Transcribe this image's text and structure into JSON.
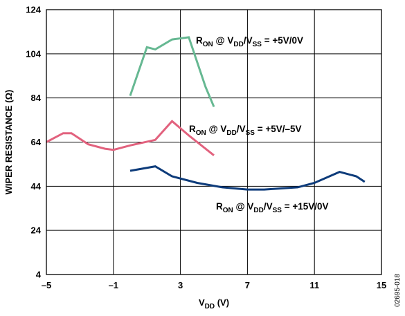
{
  "chart_data": {
    "type": "line",
    "xlabel": {
      "main": "V",
      "sub": "DD",
      "tail": " (V)"
    },
    "ylabel": "WIPER RESISTANCE (Ω)",
    "xlim": [
      -5,
      15
    ],
    "ylim": [
      4,
      124
    ],
    "x_ticks": [
      -5,
      -1,
      3,
      7,
      11,
      15
    ],
    "x_tick_labels": [
      "–5",
      "–1",
      "3",
      "7",
      "11",
      "15"
    ],
    "y_ticks": [
      4,
      24,
      44,
      64,
      84,
      104,
      124
    ],
    "y_tick_labels": [
      "4",
      "24",
      "44",
      "64",
      "84",
      "104",
      "124"
    ],
    "grid": true,
    "figure_id": "02695-018",
    "series": [
      {
        "color": "#66b892",
        "label": [
          {
            "t": "R"
          },
          {
            "t": "ON",
            "sub": true
          },
          {
            "t": " @ V"
          },
          {
            "t": "DD",
            "sub": true
          },
          {
            "t": "/V"
          },
          {
            "t": "SS",
            "sub": true
          },
          {
            "t": " = +5V/0V"
          }
        ],
        "points": [
          [
            0,
            85
          ],
          [
            1,
            107
          ],
          [
            1.5,
            106
          ],
          [
            2.5,
            110.5
          ],
          [
            3,
            111
          ],
          [
            3.5,
            111.5
          ],
          [
            4.5,
            89
          ],
          [
            5,
            80
          ]
        ]
      },
      {
        "color": "#e2627e",
        "label": [
          {
            "t": "R"
          },
          {
            "t": "ON",
            "sub": true
          },
          {
            "t": " @ V"
          },
          {
            "t": "DD",
            "sub": true
          },
          {
            "t": "/V"
          },
          {
            "t": "SS",
            "sub": true
          },
          {
            "t": " = +5V/–5V"
          }
        ],
        "points": [
          [
            -5,
            64
          ],
          [
            -4.5,
            66
          ],
          [
            -4,
            68
          ],
          [
            -3.5,
            68
          ],
          [
            -2.5,
            63
          ],
          [
            -1.5,
            61
          ],
          [
            -1,
            60.5
          ],
          [
            0,
            62.5
          ],
          [
            1.5,
            65
          ],
          [
            2.5,
            73.5
          ],
          [
            3.5,
            67
          ],
          [
            4.5,
            61
          ],
          [
            5,
            58
          ]
        ]
      },
      {
        "color": "#0d3b7a",
        "label": [
          {
            "t": "R"
          },
          {
            "t": "ON",
            "sub": true
          },
          {
            "t": " @ V"
          },
          {
            "t": "DD",
            "sub": true
          },
          {
            "t": "/V"
          },
          {
            "t": "SS",
            "sub": true
          },
          {
            "t": " = +15V/0V"
          }
        ],
        "points": [
          [
            0,
            51
          ],
          [
            1.5,
            53
          ],
          [
            2.5,
            48.5
          ],
          [
            4,
            45.5
          ],
          [
            5.5,
            43.5
          ],
          [
            7,
            42.5
          ],
          [
            8,
            42.5
          ],
          [
            10,
            43.5
          ],
          [
            11,
            45.5
          ],
          [
            12.5,
            50.5
          ],
          [
            13.5,
            48.5
          ],
          [
            14,
            46
          ]
        ]
      }
    ]
  }
}
